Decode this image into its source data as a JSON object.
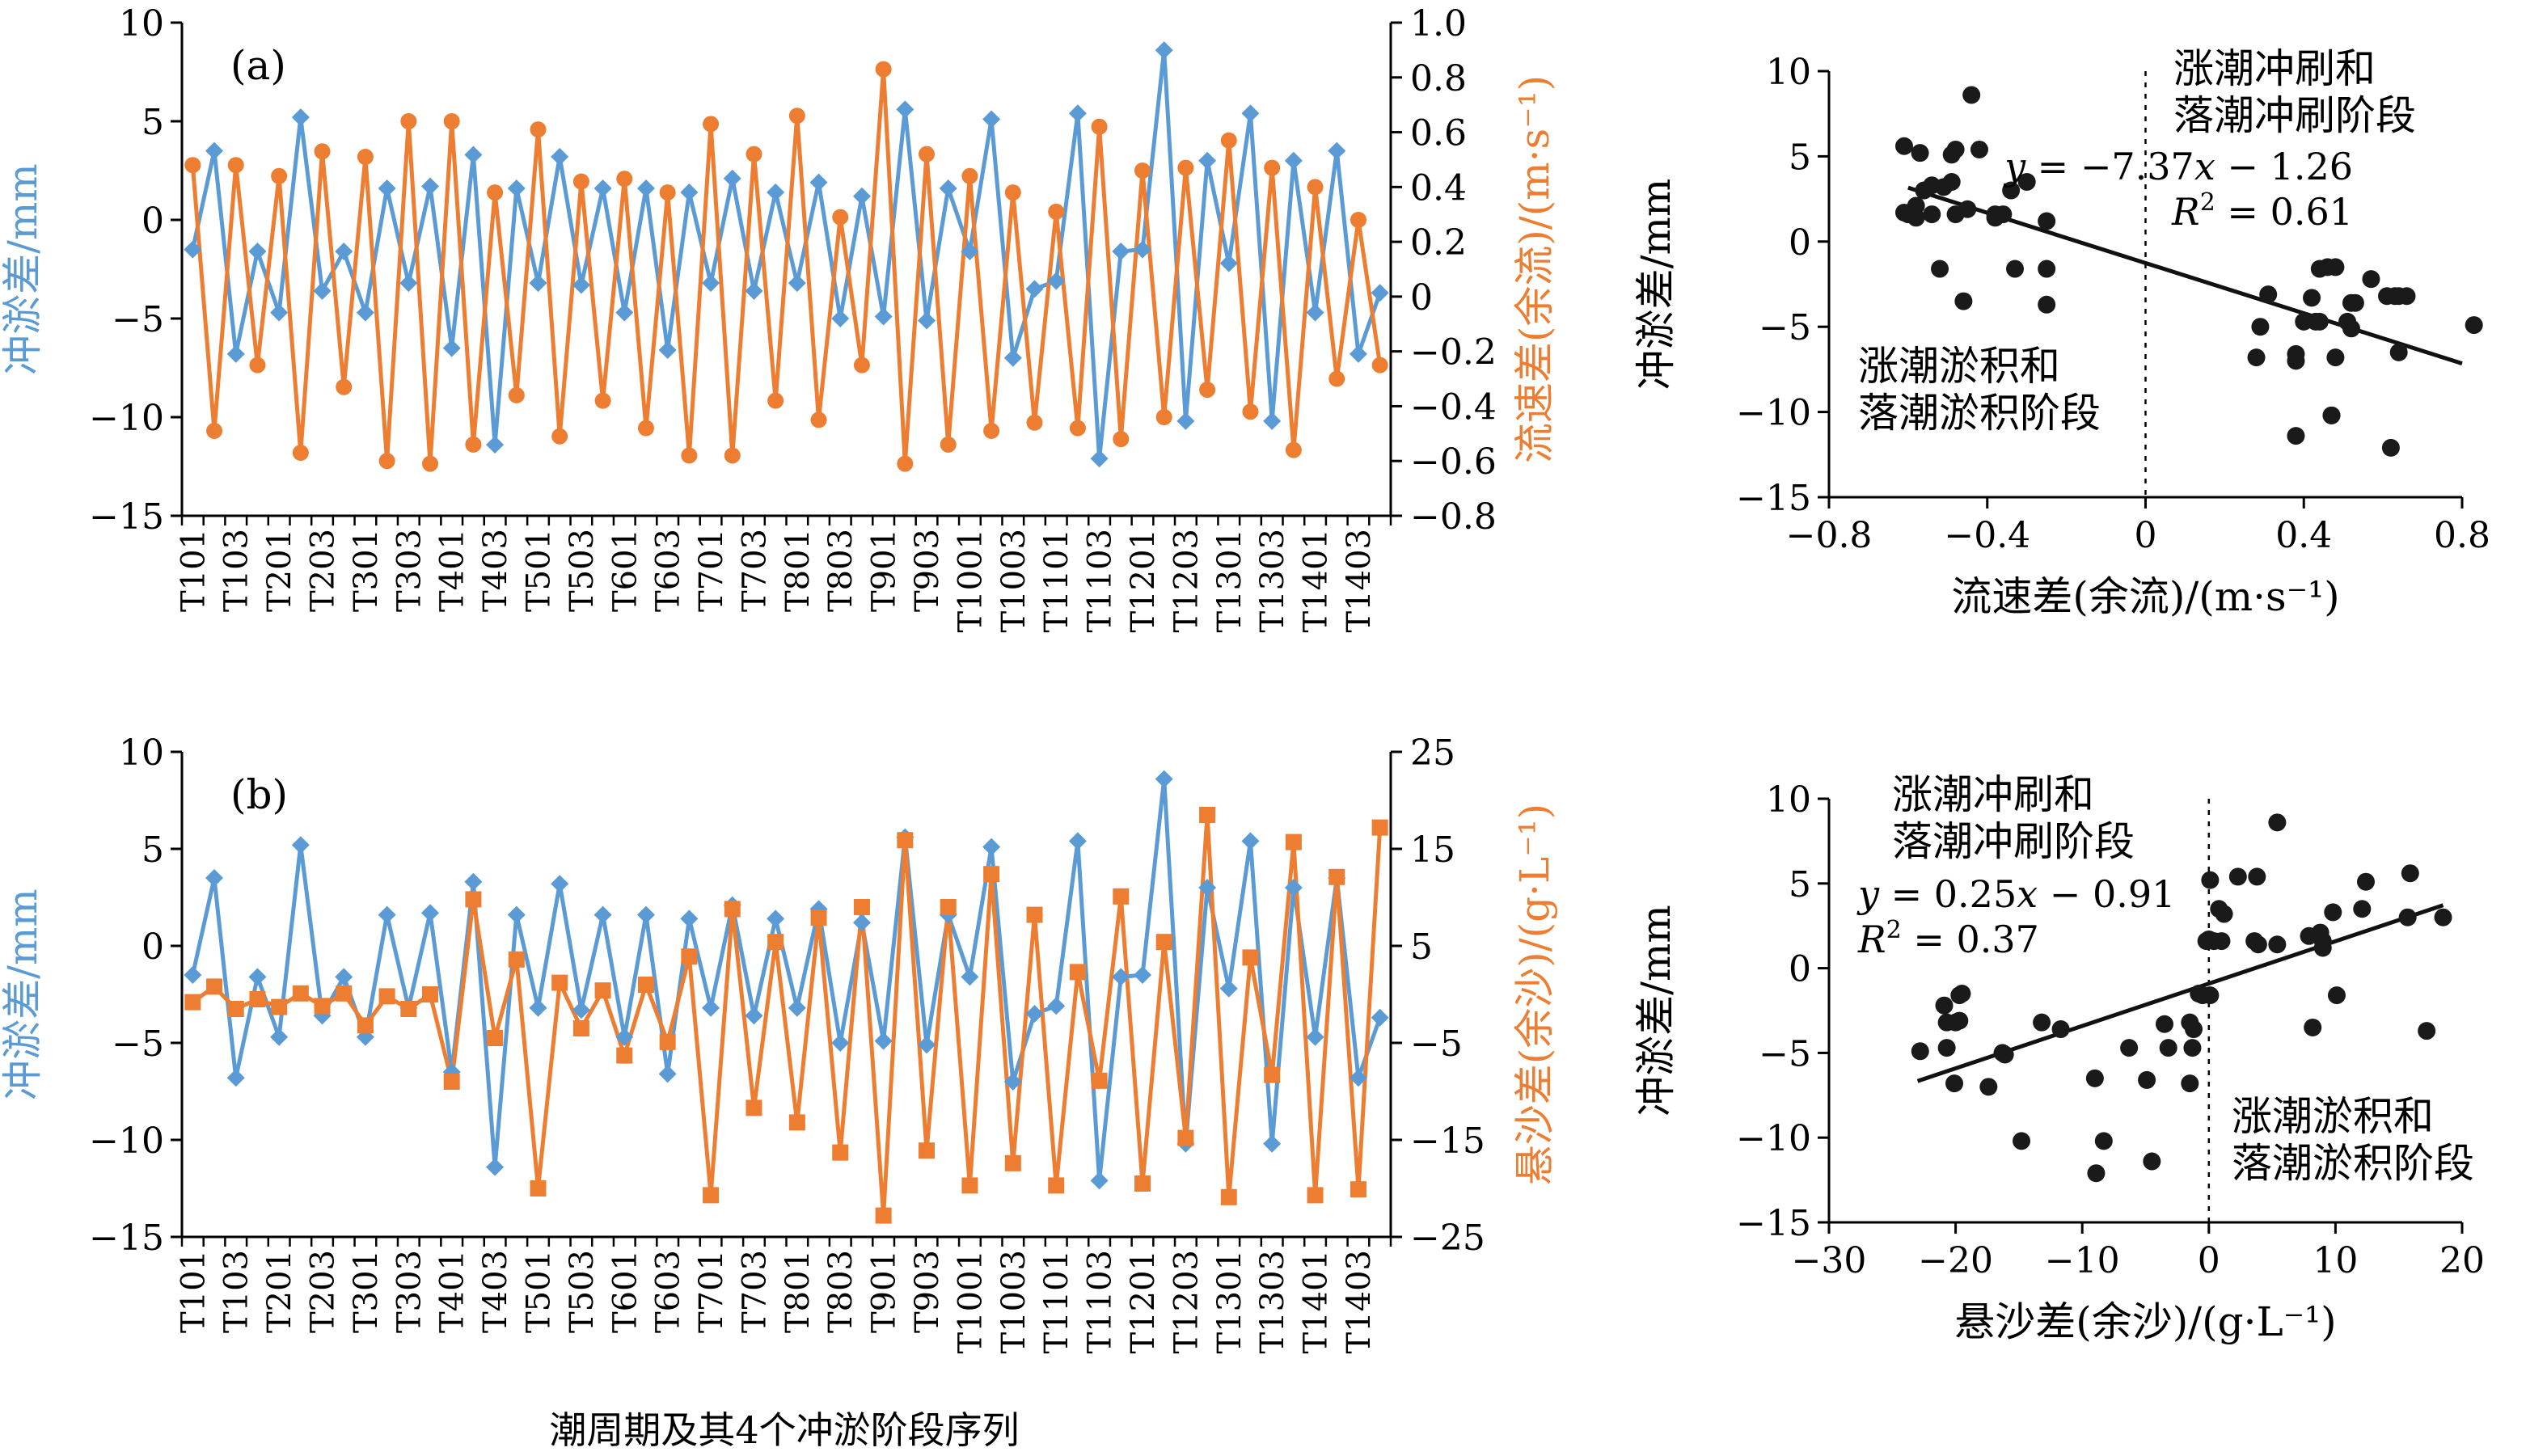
{
  "colors": {
    "blue": "#5B9BD5",
    "orange": "#ED7D31",
    "axis": "#000000",
    "scatter": "#1a1a1a"
  },
  "xlabel_bottom": "潮周期及其4个冲淤阶段序列",
  "series_a": {
    "tag": "(a)",
    "y_left_label": "冲淤差/mm",
    "y_right_label": "流速差(余流)/(m·s⁻¹)",
    "y_left_ticks": [
      "10",
      "5",
      "0",
      "−5",
      "−10",
      "−15"
    ],
    "y_right_ticks": [
      "1.0",
      "0.8",
      "0.6",
      "0.4",
      "0.2",
      "0",
      "−0.2",
      "−0.4",
      "−0.6",
      "−0.8"
    ]
  },
  "series_b": {
    "tag": "(b)",
    "y_left_label": "冲淤差/mm",
    "y_right_label": "悬沙差(余沙)/(g·L⁻¹)",
    "y_left_ticks": [
      "10",
      "5",
      "0",
      "−5",
      "−10",
      "−15"
    ],
    "y_right_ticks": [
      "25",
      "15",
      "5",
      "−5",
      "−15",
      "−25"
    ]
  },
  "scatter_c": {
    "ylabel": "冲淤差/mm",
    "xlabel": "流速差(余流)/(m·s⁻¹)",
    "x_ticks": [
      "−0.8",
      "−0.4",
      "0",
      "0.4",
      "0.8"
    ],
    "y_ticks": [
      "10",
      "5",
      "0",
      "−5",
      "−10",
      "−15"
    ],
    "annot_top_1": "涨潮冲刷和",
    "annot_top_2": "落潮冲刷阶段",
    "annot_bottom_1": "涨潮淤积和",
    "annot_bottom_2": "落潮淤积阶段",
    "eq_y": "y",
    "eq_x": "x",
    "eq_rest_1": " = −7.37",
    "eq_rest_2": " − 1.26",
    "r2_r": "R",
    "r2_sup": "2",
    "r2_val": " = 0.61"
  },
  "scatter_d": {
    "ylabel": "冲淤差/mm",
    "xlabel": "悬沙差(余沙)/(g·L⁻¹)",
    "x_ticks": [
      "−30",
      "−20",
      "−10",
      "0",
      "10",
      "20"
    ],
    "y_ticks": [
      "10",
      "5",
      "0",
      "−5",
      "−10",
      "−15"
    ],
    "annot_top_1": "涨潮冲刷和",
    "annot_top_2": "落潮冲刷阶段",
    "annot_bottom_1": "涨潮淤积和",
    "annot_bottom_2": "落潮淤积阶段",
    "eq_y": "y",
    "eq_x": "x",
    "eq_rest_1": " = 0.25",
    "eq_rest_2": " − 0.91",
    "r2_r": "R",
    "r2_sup": "2",
    "r2_val": " = 0.37"
  },
  "chart_data": [
    {
      "type": "line",
      "panel": "a",
      "categories": [
        "T101",
        "T102",
        "T103",
        "T104",
        "T201",
        "T202",
        "T203",
        "T204",
        "T301",
        "T302",
        "T303",
        "T304",
        "T401",
        "T402",
        "T403",
        "T404",
        "T501",
        "T502",
        "T503",
        "T504",
        "T601",
        "T602",
        "T603",
        "T604",
        "T701",
        "T702",
        "T703",
        "T704",
        "T801",
        "T802",
        "T803",
        "T804",
        "T901",
        "T902",
        "T903",
        "T904",
        "T1001",
        "T1002",
        "T1003",
        "T1004",
        "T1101",
        "T1102",
        "T1103",
        "T1104",
        "T1201",
        "T1202",
        "T1203",
        "T1204",
        "T1301",
        "T1302",
        "T1303",
        "T1304",
        "T1401",
        "T1402",
        "T1403",
        "T1404"
      ],
      "tick_labels": [
        "T101",
        "T103",
        "T201",
        "T203",
        "T301",
        "T303",
        "T401",
        "T403",
        "T501",
        "T503",
        "T601",
        "T603",
        "T701",
        "T703",
        "T801",
        "T803",
        "T901",
        "T903",
        "T1001",
        "T1003",
        "T1101",
        "T1103",
        "T1201",
        "T1203",
        "T1301",
        "T1303",
        "T1401",
        "T1403"
      ],
      "series": [
        {
          "axis": "left",
          "ylim": [
            -15,
            10
          ],
          "values": [
            -1.5,
            3.5,
            -6.8,
            -1.6,
            -4.7,
            5.2,
            -3.6,
            -1.6,
            -4.7,
            1.6,
            -3.2,
            1.7,
            -6.5,
            3.3,
            -11.4,
            1.6,
            -3.2,
            3.2,
            -3.3,
            1.6,
            -4.7,
            1.6,
            -6.6,
            1.4,
            -3.2,
            2.1,
            -3.6,
            1.4,
            -3.2,
            1.9,
            -5.0,
            1.2,
            -4.9,
            5.6,
            -5.1,
            1.6,
            -1.6,
            5.1,
            -7.0,
            -3.5,
            -3.1,
            5.4,
            -12.1,
            -1.6,
            -1.5,
            8.6,
            -10.2,
            3.0,
            -2.2,
            5.4,
            -10.2,
            3.0,
            -4.7,
            3.5,
            -6.8,
            -3.7
          ]
        },
        {
          "axis": "right",
          "ylim": [
            -0.8,
            1.0
          ],
          "values": [
            0.48,
            -0.49,
            0.48,
            -0.25,
            0.44,
            -0.57,
            0.53,
            -0.33,
            0.51,
            -0.6,
            0.64,
            -0.61,
            0.64,
            -0.54,
            0.38,
            -0.36,
            0.61,
            -0.51,
            0.42,
            -0.38,
            0.43,
            -0.48,
            0.38,
            -0.58,
            0.63,
            -0.58,
            0.52,
            -0.38,
            0.66,
            -0.45,
            0.29,
            -0.25,
            0.83,
            -0.61,
            0.52,
            -0.54,
            0.44,
            -0.49,
            0.38,
            -0.46,
            0.31,
            -0.48,
            0.62,
            -0.52,
            0.46,
            -0.44,
            0.47,
            -0.34,
            0.57,
            -0.42,
            0.47,
            -0.56,
            0.4,
            -0.3,
            0.28,
            -0.25
          ]
        }
      ]
    },
    {
      "type": "line",
      "panel": "b",
      "categories": [
        "T101",
        "T102",
        "T103",
        "T104",
        "T201",
        "T202",
        "T203",
        "T204",
        "T301",
        "T302",
        "T303",
        "T304",
        "T401",
        "T402",
        "T403",
        "T404",
        "T501",
        "T502",
        "T503",
        "T504",
        "T601",
        "T602",
        "T603",
        "T604",
        "T701",
        "T702",
        "T703",
        "T704",
        "T801",
        "T802",
        "T803",
        "T804",
        "T901",
        "T902",
        "T903",
        "T904",
        "T1001",
        "T1002",
        "T1003",
        "T1004",
        "T1101",
        "T1102",
        "T1103",
        "T1104",
        "T1201",
        "T1202",
        "T1203",
        "T1204",
        "T1301",
        "T1302",
        "T1303",
        "T1304",
        "T1401",
        "T1402",
        "T1403",
        "T1404"
      ],
      "tick_labels": [
        "T101",
        "T103",
        "T201",
        "T203",
        "T301",
        "T303",
        "T401",
        "T403",
        "T501",
        "T503",
        "T601",
        "T603",
        "T701",
        "T703",
        "T801",
        "T803",
        "T901",
        "T903",
        "T1001",
        "T1003",
        "T1101",
        "T1103",
        "T1201",
        "T1203",
        "T1301",
        "T1303",
        "T1401",
        "T1403"
      ],
      "series": [
        {
          "axis": "left",
          "ylim": [
            -15,
            10
          ],
          "values": [
            -1.5,
            3.5,
            -6.8,
            -1.6,
            -4.7,
            5.2,
            -3.6,
            -1.6,
            -4.7,
            1.6,
            -3.2,
            1.7,
            -6.5,
            3.3,
            -11.4,
            1.6,
            -3.2,
            3.2,
            -3.3,
            1.6,
            -4.7,
            1.6,
            -6.6,
            1.4,
            -3.2,
            2.1,
            -3.6,
            1.4,
            -3.2,
            1.9,
            -5.0,
            1.2,
            -4.9,
            5.6,
            -5.1,
            1.6,
            -1.6,
            5.1,
            -7.0,
            -3.5,
            -3.1,
            5.4,
            -12.1,
            -1.6,
            -1.5,
            8.6,
            -10.2,
            3.0,
            -2.2,
            5.4,
            -10.2,
            3.0,
            -4.7,
            3.5,
            -6.8,
            -3.7
          ]
        },
        {
          "axis": "right",
          "ylim": [
            -25,
            25
          ],
          "values": [
            -0.8,
            0.8,
            -1.5,
            -0.5,
            -1.3,
            0.1,
            -1.2,
            0.1,
            -3.2,
            -0.2,
            -1.5,
            0.0,
            -9.0,
            9.8,
            -4.5,
            3.6,
            -20.0,
            1.2,
            -3.5,
            0.4,
            -6.3,
            1.0,
            -4.9,
            3.9,
            -20.7,
            8.8,
            -11.7,
            5.4,
            -13.2,
            7.9,
            -16.3,
            9.0,
            -22.8,
            15.9,
            -16.1,
            9.0,
            -19.7,
            12.4,
            -17.4,
            8.2,
            -19.7,
            2.3,
            -8.9,
            10.1,
            -19.5,
            5.4,
            -14.8,
            18.5,
            -20.9,
            3.8,
            -8.3,
            15.7,
            -20.7,
            12.1,
            -20.1,
            17.2
          ]
        }
      ]
    },
    {
      "type": "scatter",
      "panel": "c",
      "xlim": [
        -0.8,
        0.8
      ],
      "ylim": [
        -15,
        10
      ],
      "trendline": {
        "slope": -7.37,
        "intercept": -1.26,
        "x_range": [
          -0.6,
          0.8
        ]
      },
      "x": [
        0.48,
        -0.49,
        0.48,
        -0.25,
        0.44,
        -0.57,
        0.53,
        -0.33,
        0.51,
        -0.6,
        0.64,
        -0.61,
        0.64,
        -0.54,
        0.38,
        -0.36,
        0.61,
        -0.51,
        0.42,
        -0.38,
        0.43,
        -0.48,
        0.38,
        -0.58,
        0.63,
        -0.58,
        0.52,
        -0.38,
        0.66,
        -0.45,
        0.29,
        -0.25,
        0.83,
        -0.61,
        0.52,
        -0.54,
        0.44,
        -0.49,
        0.38,
        -0.46,
        0.31,
        -0.48,
        0.62,
        -0.52,
        0.46,
        -0.44,
        0.47,
        -0.34,
        0.57,
        -0.42,
        0.47,
        -0.56,
        0.4,
        -0.3,
        0.28,
        -0.25
      ],
      "y": [
        -1.5,
        3.5,
        -6.8,
        -1.6,
        -4.7,
        5.2,
        -3.6,
        -1.6,
        -4.7,
        1.6,
        -3.2,
        1.7,
        -6.5,
        3.3,
        -11.4,
        1.6,
        -3.2,
        3.2,
        -3.3,
        1.6,
        -4.7,
        1.6,
        -6.6,
        1.4,
        -3.2,
        2.1,
        -3.6,
        1.4,
        -3.2,
        1.9,
        -5.0,
        1.2,
        -4.9,
        5.6,
        -5.1,
        1.6,
        -1.6,
        5.1,
        -7.0,
        -3.5,
        -3.1,
        5.4,
        -12.1,
        -1.6,
        -1.5,
        8.6,
        -10.2,
        3.0,
        -2.2,
        5.4,
        -10.2,
        3.0,
        -4.7,
        3.5,
        -6.8,
        -3.7
      ]
    },
    {
      "type": "scatter",
      "panel": "d",
      "xlim": [
        -30,
        20
      ],
      "ylim": [
        -15,
        10
      ],
      "trendline": {
        "slope": 0.25,
        "intercept": -0.91,
        "x_range": [
          -23,
          18.5
        ]
      },
      "x": [
        -0.8,
        0.8,
        -1.5,
        -0.5,
        -1.3,
        0.1,
        -1.2,
        0.1,
        -3.2,
        -0.2,
        -1.5,
        0.0,
        -9.0,
        9.8,
        -4.5,
        3.6,
        -20.0,
        1.2,
        -3.5,
        0.4,
        -6.3,
        1.0,
        -4.9,
        3.9,
        -20.7,
        8.8,
        -11.7,
        5.4,
        -13.2,
        7.9,
        -16.3,
        9.0,
        -22.8,
        15.9,
        -16.1,
        9.0,
        -19.7,
        12.4,
        -17.4,
        8.2,
        -19.7,
        2.3,
        -8.9,
        10.1,
        -19.5,
        5.4,
        -14.8,
        18.5,
        -20.9,
        3.8,
        -8.3,
        15.7,
        -20.7,
        12.1,
        -20.1,
        17.2
      ],
      "y": [
        -1.5,
        3.5,
        -6.8,
        -1.6,
        -4.7,
        5.2,
        -3.6,
        -1.6,
        -4.7,
        1.6,
        -3.2,
        1.7,
        -6.5,
        3.3,
        -11.4,
        1.6,
        -3.2,
        3.2,
        -3.3,
        1.6,
        -4.7,
        1.6,
        -6.6,
        1.4,
        -3.2,
        2.1,
        -3.6,
        1.4,
        -3.2,
        1.9,
        -5.0,
        1.2,
        -4.9,
        5.6,
        -5.1,
        1.6,
        -1.6,
        5.1,
        -7.0,
        -3.5,
        -3.1,
        5.4,
        -12.1,
        -1.6,
        -1.5,
        8.6,
        -10.2,
        3.0,
        -2.2,
        5.4,
        -10.2,
        3.0,
        -4.7,
        3.5,
        -6.8,
        -3.7
      ]
    }
  ]
}
